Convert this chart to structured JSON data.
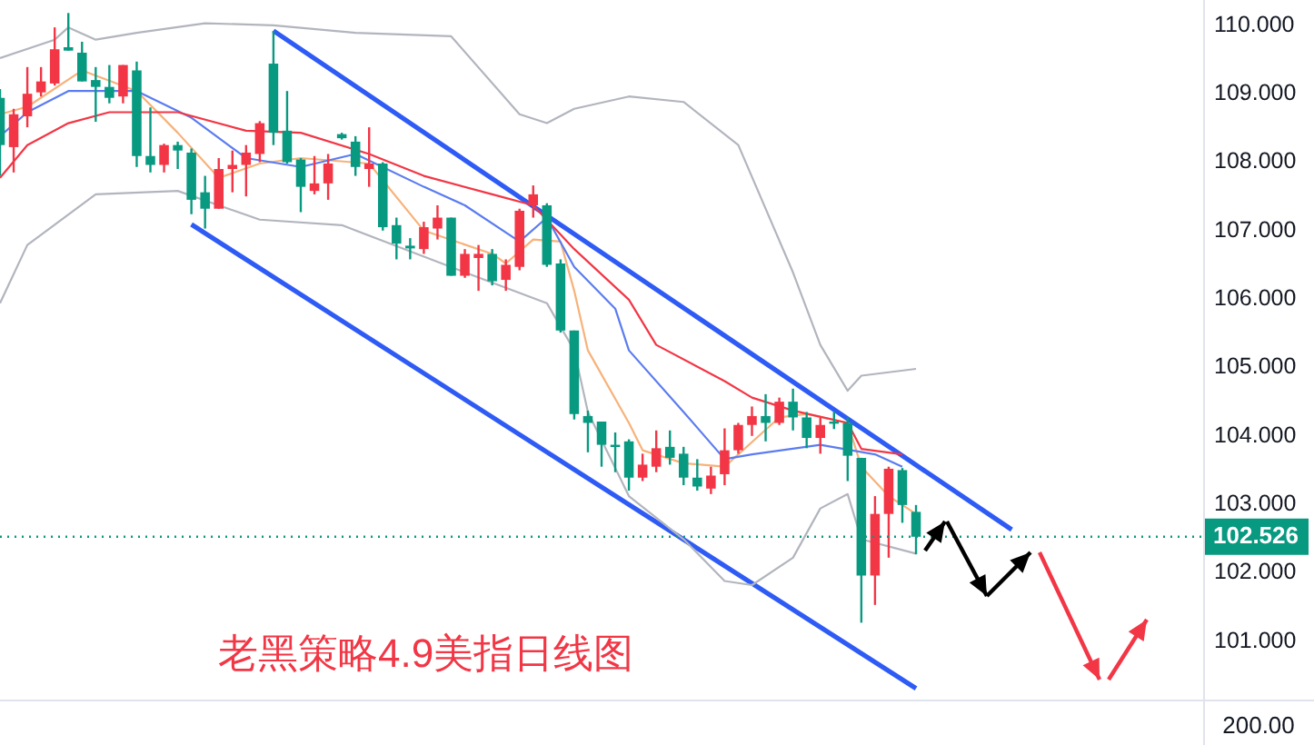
{
  "chart_data": {
    "type": "candlestick",
    "title": "老黑策略4.9美指日线图",
    "categories": [
      null,
      null,
      null,
      null,
      null,
      null,
      null,
      null,
      null,
      null,
      null,
      null,
      null,
      null,
      null,
      null,
      null,
      null,
      null,
      null,
      null,
      null,
      null,
      null,
      null,
      null,
      null,
      null,
      null,
      null,
      null,
      null,
      null,
      null,
      null,
      null,
      null,
      null,
      null,
      null,
      null,
      null,
      null,
      null,
      null,
      null,
      null,
      null,
      null,
      null,
      null,
      null,
      null,
      null,
      null,
      null,
      null,
      null,
      null,
      null,
      null,
      null,
      null,
      null,
      null,
      null,
      null,
      null,
      null,
      null,
      null,
      null,
      null,
      null,
      null,
      null,
      null,
      null,
      null,
      null,
      null,
      null,
      null,
      null,
      null,
      null,
      null,
      null,
      null
    ],
    "ohlc": [
      [
        108.94,
        109.07,
        107.8,
        108.25
      ],
      [
        108.22,
        108.78,
        107.85,
        108.7
      ],
      [
        108.67,
        109.39,
        108.51,
        109.0
      ],
      [
        109.02,
        109.39,
        108.96,
        109.18
      ],
      [
        109.15,
        109.97,
        109.12,
        109.65
      ],
      [
        109.68,
        110.18,
        109.63,
        109.63
      ],
      [
        109.6,
        109.76,
        109.18,
        109.18
      ],
      [
        109.2,
        109.39,
        108.59,
        109.1
      ],
      [
        109.1,
        109.42,
        108.86,
        108.94
      ],
      [
        108.96,
        109.42,
        108.86,
        109.42
      ],
      [
        109.34,
        109.47,
        107.93,
        108.09
      ],
      [
        108.09,
        108.8,
        107.85,
        107.96
      ],
      [
        107.96,
        108.27,
        107.85,
        108.25
      ],
      [
        108.25,
        108.3,
        107.9,
        108.17
      ],
      [
        108.14,
        108.2,
        107.24,
        107.45
      ],
      [
        107.56,
        107.8,
        107.03,
        107.32
      ],
      [
        107.32,
        108.06,
        107.32,
        107.9
      ],
      [
        107.9,
        108.17,
        107.56,
        107.96
      ],
      [
        107.96,
        108.25,
        107.5,
        108.14
      ],
      [
        108.12,
        108.6,
        108.0,
        108.57
      ],
      [
        109.44,
        109.92,
        108.25,
        108.43
      ],
      [
        108.46,
        109.04,
        107.98,
        108.0
      ],
      [
        108.04,
        108.06,
        107.27,
        107.64
      ],
      [
        107.58,
        108.09,
        107.53,
        107.69
      ],
      [
        107.69,
        108.12,
        107.45,
        107.98
      ],
      [
        108.41,
        108.43,
        108.33,
        108.35
      ],
      [
        108.3,
        108.38,
        107.8,
        107.93
      ],
      [
        107.9,
        108.51,
        107.64,
        107.98
      ],
      [
        107.98,
        108.0,
        107.0,
        107.05
      ],
      [
        107.08,
        107.19,
        106.58,
        106.81
      ],
      [
        106.78,
        106.89,
        106.58,
        106.74
      ],
      [
        106.73,
        107.13,
        106.66,
        107.05
      ],
      [
        107.03,
        107.37,
        106.87,
        107.19
      ],
      [
        107.19,
        107.19,
        106.34,
        106.34
      ],
      [
        106.34,
        106.73,
        106.31,
        106.66
      ],
      [
        106.6,
        106.79,
        106.12,
        106.66
      ],
      [
        106.66,
        106.73,
        106.2,
        106.26
      ],
      [
        106.28,
        106.58,
        106.12,
        106.5
      ],
      [
        106.47,
        107.32,
        106.42,
        107.29
      ],
      [
        107.37,
        107.66,
        107.19,
        107.53
      ],
      [
        107.37,
        107.4,
        106.47,
        106.5
      ],
      [
        106.52,
        106.58,
        105.51,
        105.54
      ],
      [
        105.54,
        105.54,
        104.24,
        104.32
      ],
      [
        104.29,
        104.37,
        103.76,
        104.19
      ],
      [
        104.21,
        104.21,
        103.55,
        103.87
      ],
      [
        103.87,
        104.05,
        103.47,
        103.84
      ],
      [
        103.92,
        103.95,
        103.2,
        103.39
      ],
      [
        103.39,
        103.74,
        103.34,
        103.58
      ],
      [
        103.55,
        104.08,
        103.47,
        103.82
      ],
      [
        103.84,
        104.08,
        103.58,
        103.68
      ],
      [
        103.74,
        103.84,
        103.28,
        103.39
      ],
      [
        103.39,
        103.66,
        103.2,
        103.26
      ],
      [
        103.23,
        103.55,
        103.15,
        103.42
      ],
      [
        103.44,
        104.11,
        103.28,
        103.79
      ],
      [
        103.79,
        104.19,
        103.74,
        104.16
      ],
      [
        104.16,
        104.43,
        104.0,
        104.29
      ],
      [
        104.29,
        104.61,
        103.92,
        104.19
      ],
      [
        104.19,
        104.56,
        104.16,
        104.5
      ],
      [
        104.5,
        104.69,
        104.08,
        104.27
      ],
      [
        104.27,
        104.35,
        103.82,
        103.97
      ],
      [
        103.97,
        104.27,
        103.74,
        104.16
      ],
      [
        104.21,
        104.35,
        104.1,
        104.19
      ],
      [
        104.19,
        104.27,
        103.34,
        103.71
      ],
      [
        103.68,
        103.68,
        101.27,
        101.96
      ],
      [
        101.96,
        103.12,
        101.53,
        102.86
      ],
      [
        102.86,
        103.55,
        102.22,
        103.52
      ],
      [
        103.5,
        103.53,
        102.73,
        102.99
      ],
      [
        102.89,
        102.99,
        102.27,
        102.526
      ],
      null,
      null,
      null,
      null,
      null,
      null,
      null,
      null,
      null,
      null,
      null,
      null,
      null,
      null,
      null,
      null,
      null,
      null,
      null,
      null,
      null
    ],
    "colors": [
      "#089981",
      "#f23645",
      "#f23645",
      "#f23645",
      "#f23645",
      "#089981",
      "#089981",
      "#089981",
      "#089981",
      "#f23645",
      "#089981",
      "#089981",
      "#f23645",
      "#089981",
      "#089981",
      "#089981",
      "#f23645",
      "#f23645",
      "#f23645",
      "#f23645",
      "#089981",
      "#089981",
      "#089981",
      "#f23645",
      "#f23645",
      "#089981",
      "#089981",
      "#f23645",
      "#089981",
      "#089981",
      "#089981",
      "#f23645",
      "#f23645",
      "#089981",
      "#f23645",
      "#f23645",
      "#089981",
      "#f23645",
      "#f23645",
      "#f23645",
      "#089981",
      "#089981",
      "#089981",
      "#089981",
      "#089981",
      "#089981",
      "#089981",
      "#f23645",
      "#f23645",
      "#089981",
      "#089981",
      "#089981",
      "#f23645",
      "#f23645",
      "#f23645",
      "#f23645",
      "#089981",
      "#f23645",
      "#089981",
      "#089981",
      "#f23645",
      "#089981",
      "#089981",
      "#089981",
      "#f23645",
      "#f23645",
      "#089981",
      "#089981",
      null,
      null,
      null,
      null,
      null,
      null,
      null,
      null,
      null,
      null,
      null,
      null,
      null,
      null,
      null,
      null,
      null,
      null,
      null,
      null,
      null
    ],
    "series": [
      {
        "type": "line",
        "color": "#b2b5be",
        "values": [
          109.52,
          null,
          null,
          null,
          109.79,
          109.97,
          null,
          109.79,
          null,
          null,
          109.89,
          null,
          null,
          null,
          null,
          110.03,
          null,
          null,
          null,
          null,
          110.0,
          null,
          null,
          null,
          null,
          null,
          109.89,
          null,
          null,
          null,
          null,
          null,
          null,
          109.84,
          null,
          null,
          null,
          null,
          108.7,
          null,
          108.57,
          null,
          108.78,
          null,
          null,
          null,
          108.96,
          null,
          null,
          null,
          108.88,
          null,
          null,
          null,
          108.25,
          null,
          null,
          null,
          106.39,
          null,
          105.33,
          null,
          104.66,
          104.88,
          null,
          null,
          null,
          104.98,
          null,
          null,
          null,
          null,
          null,
          null,
          null,
          null,
          null,
          null,
          null,
          null,
          null,
          null,
          null,
          null,
          null,
          null,
          null,
          null,
          null
        ]
      },
      {
        "type": "line",
        "color": "#b2b5be",
        "values": [
          105.94,
          null,
          106.79,
          null,
          null,
          null,
          null,
          107.53,
          null,
          null,
          null,
          null,
          null,
          107.58,
          null,
          null,
          null,
          null,
          null,
          107.16,
          null,
          null,
          null,
          null,
          null,
          107.08,
          null,
          null,
          null,
          null,
          null,
          null,
          null,
          null,
          106.39,
          null,
          null,
          null,
          null,
          null,
          105.94,
          null,
          105.25,
          104.35,
          null,
          null,
          103.12,
          null,
          null,
          null,
          102.49,
          null,
          null,
          101.88,
          null,
          101.82,
          null,
          null,
          102.22,
          null,
          102.94,
          null,
          103.15,
          102.49,
          null,
          null,
          null,
          102.28,
          null,
          null,
          null,
          null,
          null,
          null,
          null,
          null,
          null,
          null,
          null,
          null,
          null,
          null,
          null,
          null,
          null,
          null,
          null,
          null,
          null
        ]
      },
      {
        "type": "line",
        "color": "#f23645",
        "values": [
          107.77,
          null,
          108.25,
          null,
          null,
          108.57,
          null,
          null,
          108.73,
          null,
          null,
          null,
          null,
          108.73,
          null,
          null,
          null,
          null,
          108.46,
          null,
          null,
          null,
          108.43,
          null,
          null,
          null,
          null,
          108.12,
          null,
          null,
          null,
          107.8,
          null,
          null,
          null,
          null,
          107.53,
          null,
          null,
          107.37,
          null,
          null,
          106.73,
          null,
          null,
          null,
          105.99,
          null,
          105.33,
          null,
          null,
          null,
          null,
          104.8,
          null,
          104.56,
          null,
          null,
          104.37,
          null,
          null,
          null,
          104.19,
          103.81,
          null,
          null,
          103.73,
          null,
          null,
          null,
          null,
          null,
          null,
          null,
          null,
          null,
          null,
          null,
          null,
          null,
          null,
          null,
          null,
          null,
          null,
          null,
          null,
          null,
          null
        ]
      },
      {
        "type": "line",
        "color": "#5b7cf0",
        "values": [
          108.38,
          null,
          108.73,
          null,
          null,
          109.04,
          null,
          null,
          null,
          null,
          109.04,
          null,
          null,
          null,
          108.65,
          null,
          null,
          null,
          108.06,
          null,
          null,
          null,
          107.93,
          null,
          null,
          null,
          108.12,
          null,
          null,
          null,
          null,
          107.64,
          null,
          null,
          107.37,
          null,
          null,
          null,
          106.84,
          null,
          107.19,
          null,
          106.47,
          null,
          null,
          105.86,
          105.25,
          null,
          null,
          null,
          104.35,
          null,
          null,
          103.66,
          null,
          103.73,
          null,
          null,
          null,
          null,
          103.87,
          null,
          null,
          null,
          103.73,
          null,
          103.55,
          null,
          null,
          null,
          null,
          null,
          null,
          null,
          null,
          null,
          null,
          null,
          null,
          null,
          null,
          null,
          null,
          null,
          null,
          null,
          null,
          null,
          null
        ]
      },
      {
        "type": "line",
        "color": "#f7b27a",
        "values": [
          108.7,
          null,
          108.81,
          null,
          null,
          null,
          109.34,
          null,
          null,
          null,
          109.04,
          null,
          null,
          108.43,
          null,
          null,
          107.77,
          null,
          null,
          107.98,
          null,
          null,
          108.06,
          null,
          null,
          null,
          null,
          107.98,
          null,
          null,
          null,
          107.0,
          null,
          null,
          null,
          null,
          106.66,
          106.52,
          null,
          106.87,
          null,
          106.84,
          106.12,
          105.25,
          null,
          null,
          104.19,
          103.79,
          null,
          null,
          103.6,
          null,
          null,
          103.55,
          null,
          null,
          null,
          104.27,
          null,
          104.32,
          null,
          null,
          104.19,
          103.55,
          null,
          103.12,
          null,
          102.86,
          null,
          null,
          null,
          null,
          null,
          null,
          null,
          null,
          null,
          null,
          null,
          null,
          null,
          null,
          null,
          null,
          null,
          null,
          null,
          null,
          null
        ]
      },
      {
        "type": "line",
        "color": "#2f5bf5",
        "values": [
          null,
          null,
          null,
          null,
          null,
          null,
          null,
          null,
          null,
          null,
          null,
          null,
          null,
          null,
          null,
          null,
          null,
          null,
          null,
          null,
          109.92,
          null,
          null,
          null,
          null,
          null,
          null,
          null,
          null,
          null,
          null,
          null,
          null,
          null,
          null,
          null,
          null,
          null,
          null,
          null,
          null,
          null,
          null,
          null,
          null,
          null,
          null,
          null,
          null,
          null,
          null,
          null,
          null,
          null,
          null,
          null,
          null,
          null,
          null,
          null,
          null,
          null,
          null,
          null,
          null,
          null,
          null,
          null,
          null,
          null,
          null,
          null,
          null,
          null,
          102.63,
          null,
          null,
          null,
          null,
          null,
          null,
          null,
          null,
          null,
          null,
          null,
          null,
          null,
          null
        ]
      },
      {
        "type": "line",
        "color": "#2f5bf5",
        "values": [
          null,
          null,
          null,
          null,
          null,
          null,
          null,
          null,
          null,
          null,
          null,
          null,
          null,
          null,
          107.09,
          null,
          null,
          null,
          null,
          null,
          null,
          null,
          null,
          null,
          null,
          null,
          null,
          null,
          null,
          null,
          null,
          null,
          null,
          null,
          null,
          null,
          null,
          null,
          null,
          null,
          null,
          null,
          null,
          null,
          null,
          null,
          null,
          null,
          null,
          null,
          null,
          null,
          null,
          null,
          null,
          null,
          null,
          null,
          null,
          null,
          null,
          null,
          null,
          null,
          null,
          null,
          null,
          100.31,
          null,
          null,
          null,
          null,
          null,
          null,
          null,
          null,
          null,
          null,
          null,
          null,
          null,
          null,
          null,
          null,
          null,
          null,
          null,
          null,
          null
        ]
      }
    ],
    "ylim": [
      100.2,
      110.37
    ],
    "yticks": [
      {
        "value": 101,
        "label": "101.000"
      },
      {
        "value": 102,
        "label": "102.000"
      },
      {
        "value": 103,
        "label": "103.000"
      },
      {
        "value": 104,
        "label": "104.000"
      },
      {
        "value": 105,
        "label": "105.000"
      },
      {
        "value": 106,
        "label": "106.000"
      },
      {
        "value": 107,
        "label": "107.000"
      },
      {
        "value": 108,
        "label": "108.000"
      },
      {
        "value": 109,
        "label": "109.000"
      },
      {
        "value": 110,
        "label": "110.000"
      }
    ],
    "tick_labels": "y",
    "ref_lines": [
      {
        "axis": "y",
        "value": 102.526,
        "label": "102.526",
        "color": "#089981",
        "line_style": "dotted"
      }
    ],
    "annotations": [
      "200.00"
    ]
  }
}
